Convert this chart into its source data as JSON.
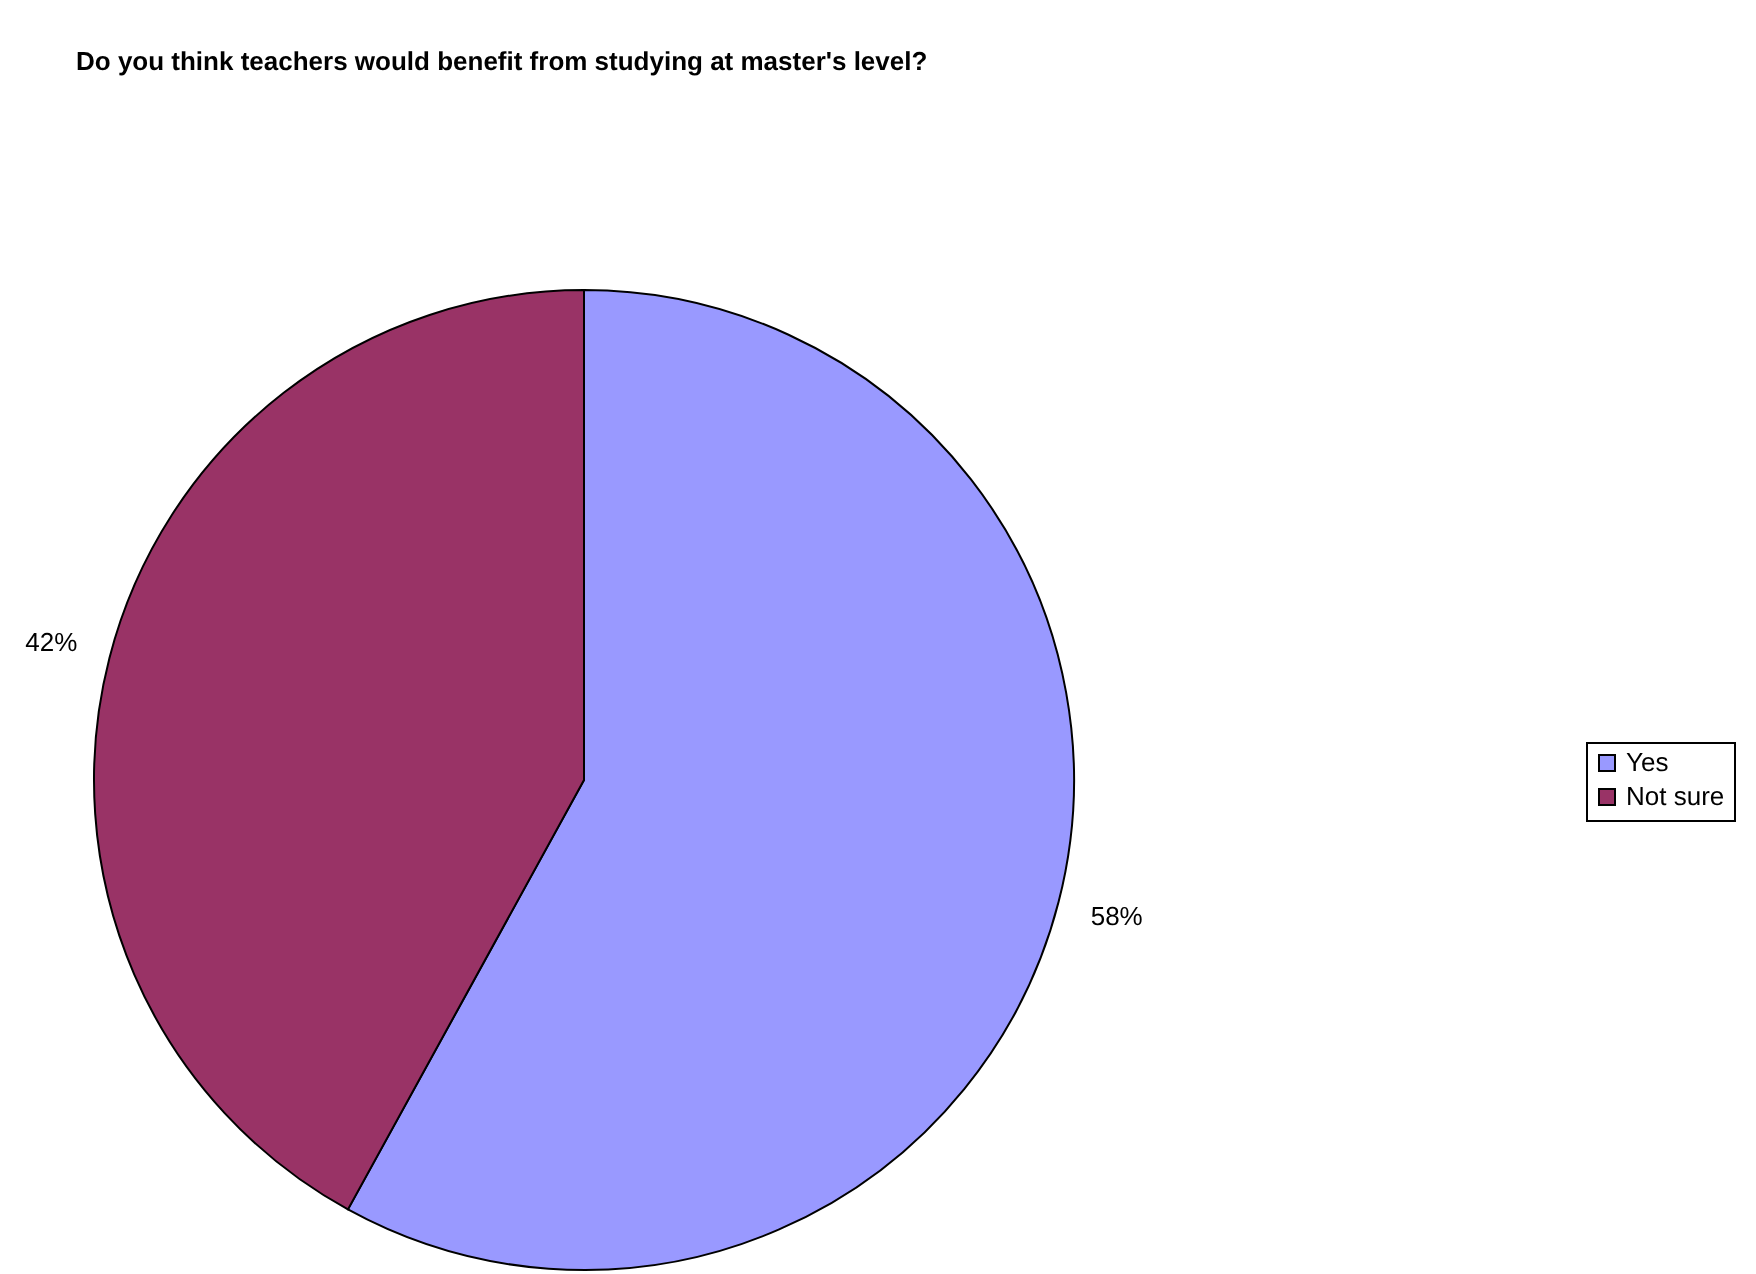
{
  "chart_data": {
    "type": "pie",
    "title": "Do you think teachers would benefit from studying at master's level?",
    "categories": [
      "Yes",
      "Not sure"
    ],
    "values": [
      58,
      42
    ],
    "colors": [
      "#9999ff",
      "#993366"
    ],
    "value_labels": [
      "58%",
      "42%"
    ],
    "legend": "right"
  }
}
